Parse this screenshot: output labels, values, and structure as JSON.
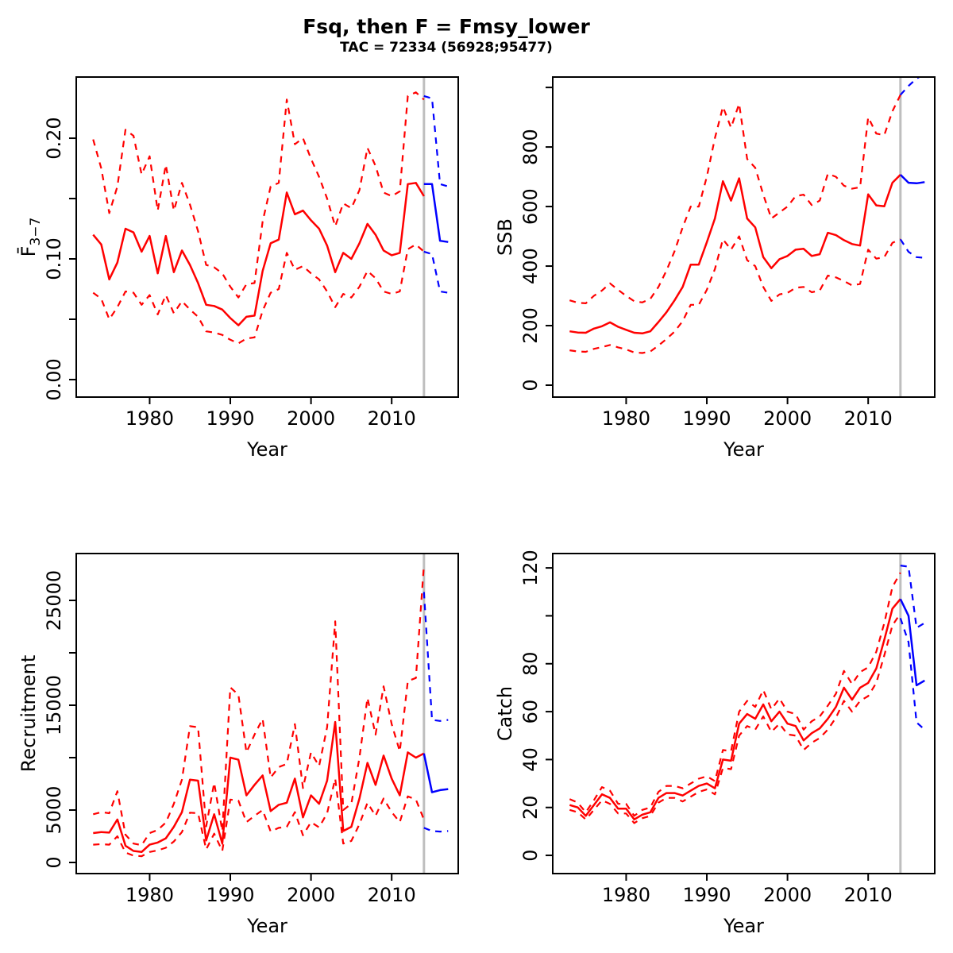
{
  "header": {
    "title": "Fsq, then F = Fmsy_lower",
    "subtitle": "TAC = 72334 (56928;95477)"
  },
  "colors": {
    "historical": "#ff0000",
    "forecast": "#0000ff",
    "divider": "#bebebe",
    "axis": "#000000",
    "background": "#ffffff"
  },
  "chart_data": {
    "type": "line",
    "x_label": "Year",
    "xlim": [
      1970.9,
      2018.25
    ],
    "xticks": [
      1980,
      1990,
      2000,
      2010
    ],
    "forecast_start_year": 2014,
    "x_hist": [
      1973,
      1974,
      1975,
      1976,
      1977,
      1978,
      1979,
      1980,
      1981,
      1982,
      1983,
      1984,
      1985,
      1986,
      1987,
      1988,
      1989,
      1990,
      1991,
      1992,
      1993,
      1994,
      1995,
      1996,
      1997,
      1998,
      1999,
      2000,
      2001,
      2002,
      2003,
      2004,
      2005,
      2006,
      2007,
      2008,
      2009,
      2010,
      2011,
      2012,
      2013,
      2014
    ],
    "x_forecast": [
      2014,
      2015,
      2016,
      2017
    ],
    "panels": [
      {
        "id": "fbar",
        "ylabel": "F",
        "ylabel_overbar": true,
        "ylabel_sub": "3−7",
        "ylim": [
          -0.0145,
          0.2507
        ],
        "yticks": [
          {
            "v": 0.0,
            "label": "0.00"
          },
          {
            "v": 0.05,
            "label": ""
          },
          {
            "v": 0.1,
            "label": "0.10"
          },
          {
            "v": 0.15,
            "label": ""
          },
          {
            "v": 0.2,
            "label": "0.20"
          }
        ],
        "median": [
          0.12,
          0.112,
          0.083,
          0.097,
          0.125,
          0.122,
          0.106,
          0.119,
          0.088,
          0.119,
          0.089,
          0.107,
          0.095,
          0.08,
          0.062,
          0.061,
          0.058,
          0.051,
          0.045,
          0.052,
          0.053,
          0.09,
          0.113,
          0.116,
          0.155,
          0.137,
          0.14,
          0.132,
          0.125,
          0.111,
          0.089,
          0.105,
          0.1,
          0.113,
          0.129,
          0.12,
          0.107,
          0.103,
          0.105,
          0.162,
          0.163,
          0.152
        ],
        "lower": [
          0.072,
          0.067,
          0.05,
          0.06,
          0.073,
          0.072,
          0.062,
          0.07,
          0.054,
          0.07,
          0.055,
          0.065,
          0.058,
          0.052,
          0.04,
          0.039,
          0.037,
          0.033,
          0.03,
          0.034,
          0.035,
          0.057,
          0.072,
          0.075,
          0.105,
          0.091,
          0.094,
          0.088,
          0.083,
          0.073,
          0.06,
          0.071,
          0.068,
          0.077,
          0.09,
          0.084,
          0.073,
          0.071,
          0.073,
          0.108,
          0.112,
          0.106
        ],
        "upper": [
          0.199,
          0.175,
          0.138,
          0.16,
          0.207,
          0.202,
          0.17,
          0.185,
          0.14,
          0.178,
          0.14,
          0.163,
          0.145,
          0.123,
          0.095,
          0.093,
          0.088,
          0.077,
          0.068,
          0.079,
          0.08,
          0.131,
          0.16,
          0.163,
          0.232,
          0.195,
          0.2,
          0.183,
          0.168,
          0.15,
          0.127,
          0.146,
          0.142,
          0.157,
          0.192,
          0.177,
          0.155,
          0.152,
          0.156,
          0.235,
          0.238,
          0.232
        ],
        "forecast_median": [
          0.162,
          0.162,
          0.115,
          0.114
        ],
        "forecast_lower": [
          0.106,
          0.104,
          0.073,
          0.072
        ],
        "forecast_upper": [
          0.235,
          0.233,
          0.162,
          0.16
        ]
      },
      {
        "id": "ssb",
        "ylabel": "SSB",
        "ylim": [
          -40,
          1035
        ],
        "yticks": [
          {
            "v": 0,
            "label": "0"
          },
          {
            "v": 200,
            "label": "200"
          },
          {
            "v": 400,
            "label": "400"
          },
          {
            "v": 600,
            "label": "600"
          },
          {
            "v": 800,
            "label": "800"
          },
          {
            "v": 1000,
            "label": ""
          }
        ],
        "median": [
          181,
          177,
          176,
          190,
          198,
          211,
          196,
          186,
          176,
          174,
          181,
          212,
          245,
          285,
          330,
          405,
          405,
          480,
          560,
          685,
          620,
          695,
          560,
          530,
          430,
          393,
          423,
          434,
          455,
          458,
          434,
          440,
          512,
          504,
          487,
          474,
          469,
          641,
          604,
          601,
          680,
          707
        ],
        "lower": [
          117,
          113,
          112,
          122,
          128,
          135,
          127,
          120,
          110,
          108,
          113,
          133,
          155,
          180,
          215,
          270,
          270,
          320,
          390,
          490,
          455,
          500,
          420,
          400,
          330,
          283,
          305,
          310,
          327,
          330,
          312,
          318,
          368,
          362,
          350,
          335,
          340,
          455,
          425,
          430,
          478,
          490
        ],
        "upper": [
          285,
          277,
          275,
          300,
          318,
          342,
          320,
          300,
          282,
          278,
          290,
          330,
          385,
          450,
          530,
          600,
          600,
          700,
          830,
          935,
          865,
          945,
          760,
          730,
          640,
          560,
          580,
          600,
          635,
          640,
          605,
          620,
          710,
          700,
          670,
          660,
          665,
          900,
          845,
          840,
          920,
          975
        ],
        "forecast_median": [
          707,
          680,
          678,
          682
        ],
        "forecast_lower": [
          490,
          448,
          430,
          428
        ],
        "forecast_upper": [
          975,
          1005,
          1030,
          1045
        ]
      },
      {
        "id": "recruitment",
        "ylabel": "Recruitment",
        "ylim": [
          -1061,
          29470
        ],
        "yticks": [
          {
            "v": 0,
            "label": "0"
          },
          {
            "v": 5000,
            "label": "5000"
          },
          {
            "v": 10000,
            "label": ""
          },
          {
            "v": 15000,
            "label": "15000"
          },
          {
            "v": 20000,
            "label": ""
          },
          {
            "v": 25000,
            "label": "25000"
          }
        ],
        "median": [
          2800,
          2900,
          2850,
          4100,
          1600,
          1100,
          1000,
          1700,
          1900,
          2300,
          3400,
          4800,
          7900,
          7800,
          2100,
          4600,
          1800,
          10000,
          9800,
          6400,
          7400,
          8300,
          4900,
          5500,
          5700,
          8000,
          4300,
          6400,
          5600,
          7800,
          13400,
          3000,
          3400,
          6100,
          9500,
          7400,
          10200,
          8000,
          6400,
          10500,
          10000,
          10400
        ],
        "lower": [
          1700,
          1750,
          1700,
          2500,
          950,
          650,
          600,
          1000,
          1150,
          1400,
          2000,
          2900,
          4750,
          4700,
          1250,
          2750,
          1100,
          6000,
          5900,
          3850,
          4450,
          5000,
          2950,
          3300,
          3400,
          4800,
          2600,
          3850,
          3350,
          4700,
          8000,
          1800,
          2050,
          3650,
          5700,
          4450,
          6100,
          4800,
          3850,
          6300,
          6000,
          4100
        ],
        "upper": [
          4600,
          4800,
          4700,
          6800,
          2650,
          1800,
          1650,
          2800,
          3100,
          3800,
          5600,
          7900,
          13000,
          12900,
          3450,
          7600,
          3000,
          16700,
          16000,
          10500,
          12200,
          13700,
          8100,
          9100,
          9400,
          13200,
          7100,
          10500,
          9200,
          12900,
          23000,
          5000,
          5600,
          10000,
          15700,
          12200,
          16800,
          13200,
          10600,
          17300,
          17600,
          28400
        ],
        "forecast_median": [
          10400,
          6700,
          6900,
          7000
        ],
        "forecast_lower": [
          3300,
          3000,
          2950,
          3000
        ],
        "forecast_upper": [
          25800,
          13600,
          13500,
          13600
        ]
      },
      {
        "id": "catch",
        "ylabel": "Catch",
        "ylim": [
          -7.6,
          126
        ],
        "yticks": [
          {
            "v": 0,
            "label": "0"
          },
          {
            "v": 20,
            "label": "20"
          },
          {
            "v": 40,
            "label": "40"
          },
          {
            "v": 60,
            "label": "60"
          },
          {
            "v": 80,
            "label": "80"
          },
          {
            "v": 100,
            "label": ""
          },
          {
            "v": 120,
            "label": "120"
          }
        ],
        "median": [
          21,
          20,
          16.5,
          21,
          25.5,
          24,
          19.5,
          19.5,
          15,
          17,
          18,
          24,
          26,
          26,
          25,
          27,
          29,
          30,
          28,
          40,
          39.5,
          55,
          59,
          57,
          63,
          56,
          60,
          55,
          54,
          48,
          51,
          53,
          57,
          62,
          70,
          65,
          70,
          72,
          78,
          90,
          103,
          107
        ],
        "lower": [
          19,
          18,
          15,
          19,
          23,
          21.5,
          17.5,
          17.5,
          13.5,
          15.5,
          16.5,
          22,
          24,
          24,
          22.5,
          24.5,
          26.5,
          27.5,
          25.5,
          36.5,
          36,
          50,
          54,
          52.5,
          58,
          51.5,
          55,
          50.5,
          50,
          44,
          47,
          49,
          52.5,
          57.5,
          64.5,
          60,
          64.5,
          66.5,
          72,
          83.5,
          96,
          101
        ],
        "upper": [
          23.5,
          22,
          18,
          23,
          28.5,
          27,
          21.5,
          21.5,
          16.5,
          19,
          20,
          26.5,
          29,
          29,
          28,
          30,
          32,
          33,
          31,
          44,
          43.5,
          60,
          64.5,
          62,
          69,
          61,
          65.5,
          60,
          59,
          52.5,
          56,
          58,
          62.5,
          67.5,
          77,
          71.5,
          76.5,
          78.5,
          85,
          97,
          112,
          118
        ],
        "forecast_median": [
          107,
          100,
          71,
          73
        ],
        "forecast_lower": [
          99,
          89,
          55.5,
          52.5
        ],
        "forecast_upper": [
          121,
          120.5,
          95,
          97
        ]
      }
    ]
  }
}
